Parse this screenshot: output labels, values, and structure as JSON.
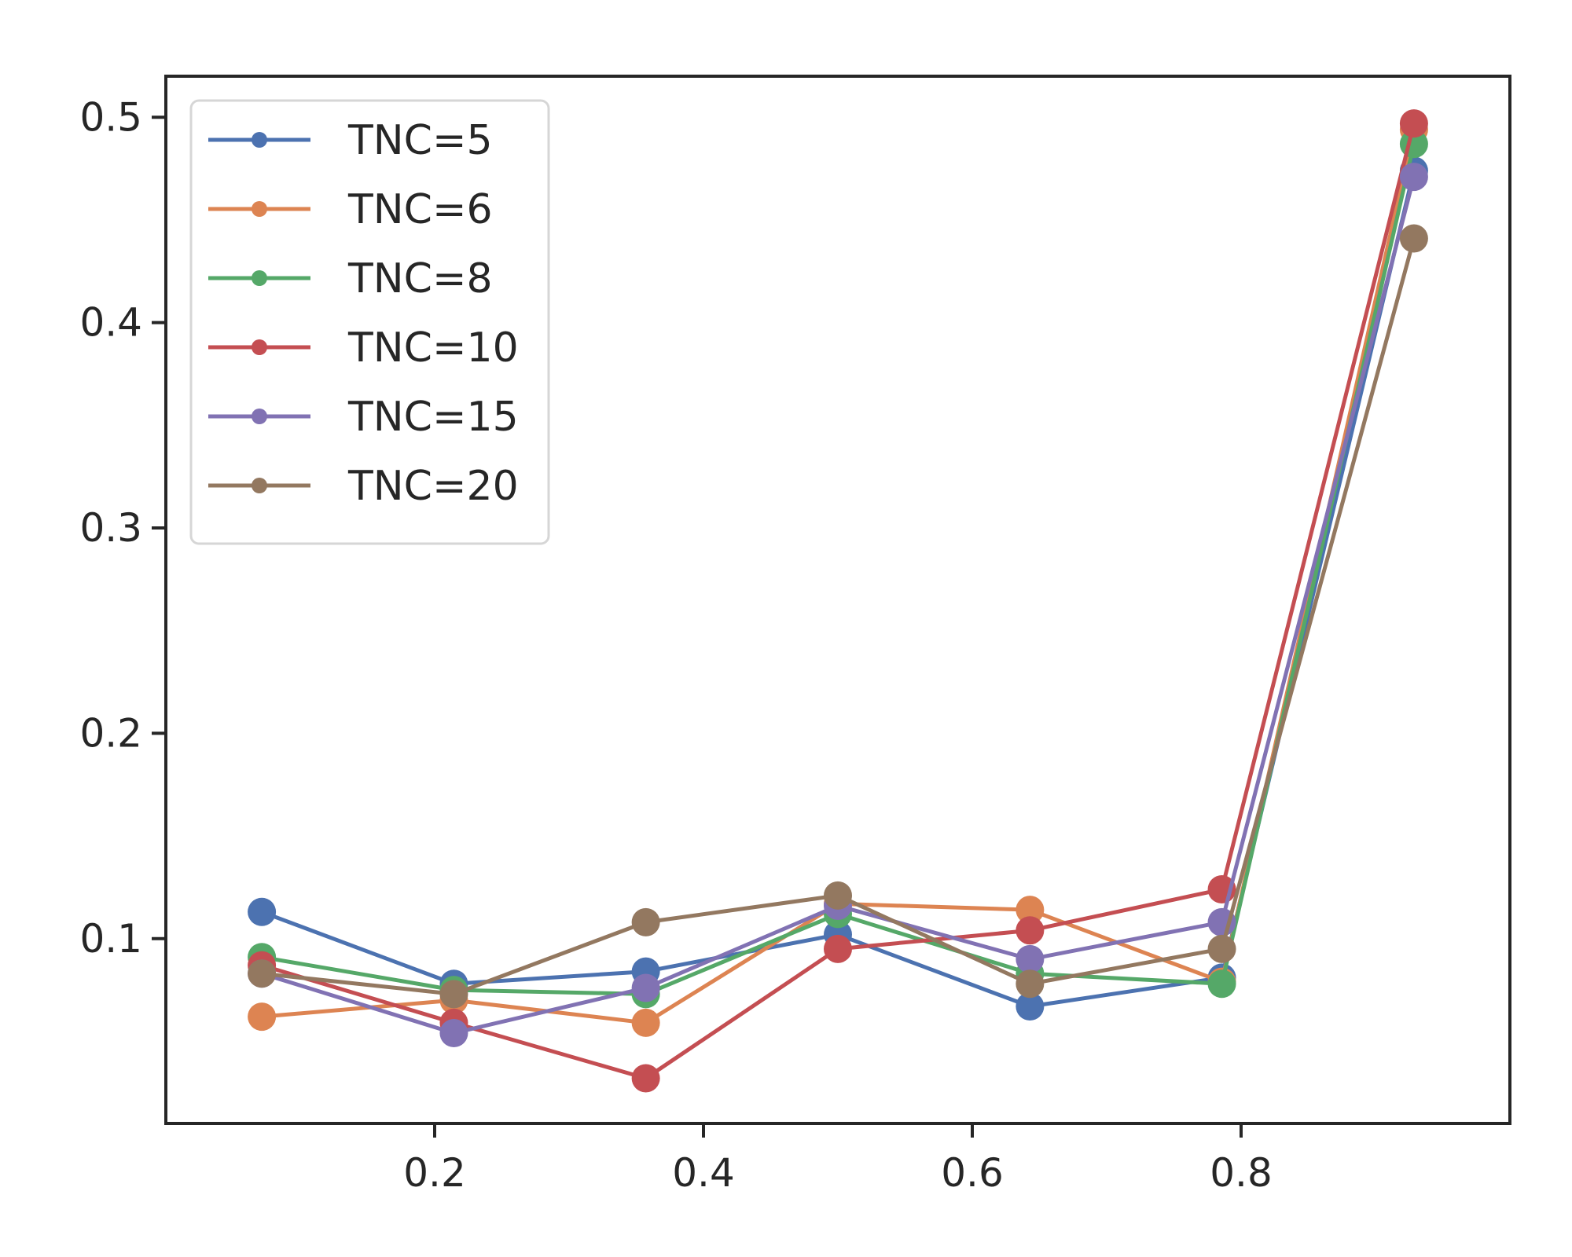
{
  "chart_data": {
    "type": "line",
    "title": "",
    "xlabel": "",
    "ylabel": "",
    "x": [
      0.0714,
      0.2143,
      0.3571,
      0.5,
      0.6429,
      0.7857,
      0.9286
    ],
    "xlim": [
      0.0,
      1.0
    ],
    "ylim": [
      0.01,
      0.52
    ],
    "xticks": [
      0.2,
      0.4,
      0.6,
      0.8
    ],
    "xtick_labels": [
      "0.2",
      "0.4",
      "0.6",
      "0.8"
    ],
    "yticks": [
      0.1,
      0.2,
      0.3,
      0.4,
      0.5
    ],
    "ytick_labels": [
      "0.1",
      "0.2",
      "0.3",
      "0.4",
      "0.5"
    ],
    "grid": false,
    "legend_position": "top-left",
    "series": [
      {
        "name": "TNC=5",
        "color": "#4c72b0",
        "values": [
          0.113,
          0.078,
          0.084,
          0.102,
          0.067,
          0.081,
          0.474
        ]
      },
      {
        "name": "TNC=6",
        "color": "#dd8452",
        "values": [
          0.062,
          0.07,
          0.059,
          0.117,
          0.114,
          0.079,
          0.494
        ]
      },
      {
        "name": "TNC=8",
        "color": "#55a868",
        "values": [
          0.091,
          0.075,
          0.073,
          0.112,
          0.083,
          0.078,
          0.487
        ]
      },
      {
        "name": "TNC=10",
        "color": "#c44e52",
        "values": [
          0.087,
          0.059,
          0.032,
          0.095,
          0.104,
          0.124,
          0.497
        ]
      },
      {
        "name": "TNC=15",
        "color": "#8172b3",
        "values": [
          0.083,
          0.054,
          0.076,
          0.116,
          0.09,
          0.108,
          0.471
        ]
      },
      {
        "name": "TNC=20",
        "color": "#937860",
        "values": [
          0.083,
          0.073,
          0.108,
          0.121,
          0.078,
          0.095,
          0.441
        ]
      }
    ]
  }
}
